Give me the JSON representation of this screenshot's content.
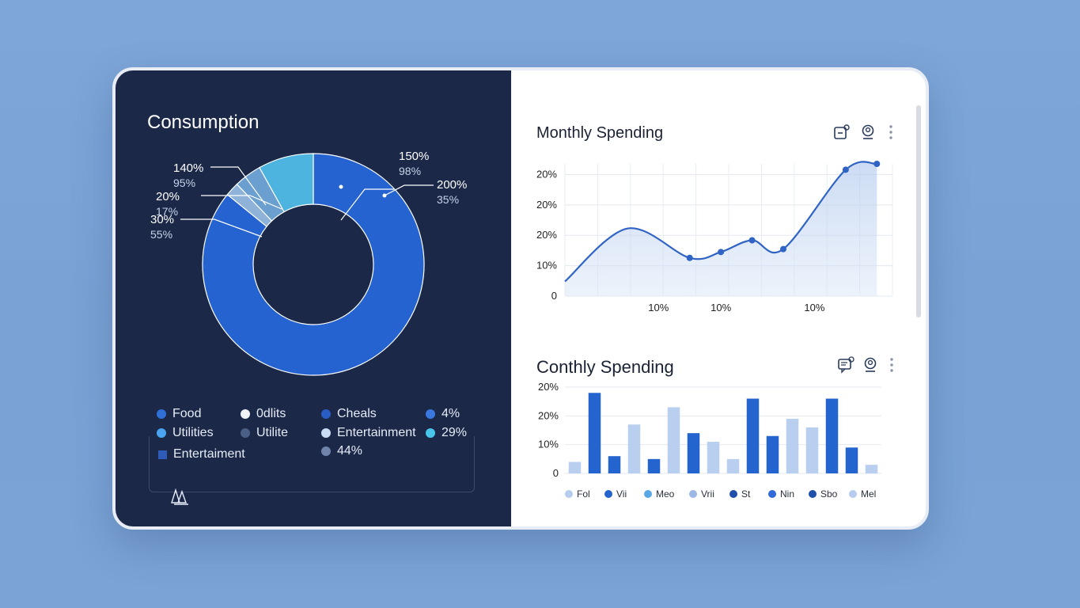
{
  "left_panel": {
    "title": "Consumption",
    "callouts": [
      {
        "main": "150%",
        "sub": "98%"
      },
      {
        "main": "200%",
        "sub": "35%"
      },
      {
        "main": "140%",
        "sub": "95%"
      },
      {
        "main": "20%",
        "sub": "17%"
      },
      {
        "main": "30%",
        "sub": "55%"
      }
    ],
    "legend": [
      {
        "label": "Food",
        "color": "#2f6fd6"
      },
      {
        "label": "0dlits",
        "color": "#f1f3f7"
      },
      {
        "label": "Cheals",
        "color": "#2a5dc4"
      },
      {
        "label": "4%",
        "color": "#3a78e0"
      },
      {
        "label": "Utilities",
        "color": "#4aa3f0"
      },
      {
        "label": "Utilite",
        "color": "#4a5f86"
      },
      {
        "label": "Entertainment",
        "color": "#c9dcf2"
      },
      {
        "label": "29%",
        "color": "#49c6ea"
      },
      {
        "label": "Entertaiment",
        "color": "#2f5cb8"
      },
      {
        "label": "44%",
        "color": "#6f84aa"
      }
    ]
  },
  "top_chart_panel": {
    "title": "Monthly Spending",
    "icons": [
      "export-icon",
      "user-icon",
      "more-icon"
    ]
  },
  "bottom_chart_panel": {
    "title": "Conthly Spending",
    "icons": [
      "comment-icon",
      "user-icon",
      "more-icon"
    ],
    "legend": [
      {
        "label": "Fol",
        "color": "#b7cdf0"
      },
      {
        "label": "Vii",
        "color": "#2463cc"
      },
      {
        "label": "Meo",
        "color": "#5aa7e6"
      },
      {
        "label": "Vrii",
        "color": "#9bb8e6"
      },
      {
        "label": "St",
        "color": "#1f4fa8"
      },
      {
        "label": "Nin",
        "color": "#2f6ad6"
      },
      {
        "label": "Sbo",
        "color": "#1f4fa8"
      },
      {
        "label": "Mel",
        "color": "#b7cdf0"
      }
    ]
  },
  "chart_data": [
    {
      "type": "pie",
      "title": "Consumption",
      "donut": true,
      "slices": [
        {
          "value": 85,
          "color": "#2563d0"
        },
        {
          "value": 2,
          "color": "#8fb2d8"
        },
        {
          "value": 4,
          "color": "#6a9fd0"
        },
        {
          "value": 8,
          "color": "#4db4e0"
        }
      ]
    },
    {
      "type": "line",
      "title": "Monthly Spending",
      "ytick_labels": [
        "0",
        "10%",
        "20%",
        "20%",
        "20%"
      ],
      "xtick_labels": [
        "10%",
        "10%",
        "10%"
      ],
      "xtick_positions": [
        3,
        5,
        8
      ],
      "x": [
        0,
        2,
        4,
        5,
        6,
        7,
        9,
        10
      ],
      "y": [
        5,
        23,
        13,
        15,
        19,
        16,
        43,
        45
      ],
      "markers": [
        4,
        5,
        6,
        7,
        9,
        10
      ],
      "ylim": [
        0,
        45
      ],
      "xlim": [
        0,
        10.5
      ],
      "grid": true,
      "area_fill": true
    },
    {
      "type": "bar",
      "title": "Conthly Spending",
      "ytick_labels": [
        "0",
        "10%",
        "20%",
        "20%"
      ],
      "values": [
        4,
        28,
        6,
        17,
        5,
        23,
        14,
        11,
        5,
        26,
        13,
        19,
        16,
        26,
        9,
        3
      ],
      "colors": [
        "#b9cff0",
        "#2464cf",
        "#2464cf",
        "#b9cff0",
        "#2464cf",
        "#b9cff0",
        "#2464cf",
        "#b9cff0",
        "#b9cff0",
        "#2464cf",
        "#2464cf",
        "#b9cff0",
        "#b9cff0",
        "#2464cf",
        "#2464cf",
        "#b9cff0"
      ],
      "ylim": [
        0,
        30
      ],
      "grid": true
    }
  ]
}
